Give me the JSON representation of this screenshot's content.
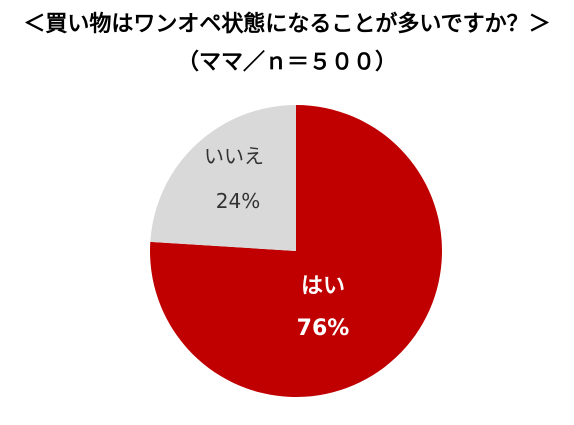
{
  "chart_data": {
    "type": "pie",
    "title": "＜買い物はワンオペ状態になることが多いですか？＞",
    "subtitle": "（ママ／ｎ＝５００）",
    "slices": [
      {
        "label": "はい",
        "value": 76,
        "value_label": "76%",
        "color": "#c00000",
        "text_color": "#ffffff"
      },
      {
        "label": "いいえ",
        "value": 24,
        "value_label": "24%",
        "color": "#d9d9d9",
        "text_color": "#333333"
      }
    ],
    "start": "12 o'clock",
    "direction": "clockwise",
    "legend": "none"
  }
}
